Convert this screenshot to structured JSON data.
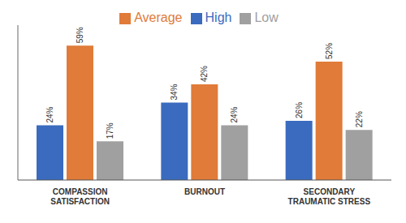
{
  "chart_data": {
    "type": "bar",
    "categories": [
      "COMPASSION\nSATISFACTION",
      "BURNOUT",
      "SECONDARY\nTRAUMATIC STRESS"
    ],
    "series": [
      {
        "name": "High",
        "color": "#3a6bbf",
        "values": [
          24,
          34,
          26
        ],
        "value_labels": [
          "24%",
          "34%",
          "26%"
        ]
      },
      {
        "name": "Average",
        "color": "#e07b39",
        "values": [
          59,
          42,
          52
        ],
        "value_labels": [
          "59%",
          "42%",
          "52%"
        ]
      },
      {
        "name": "Low",
        "color": "#a0a0a0",
        "values": [
          17,
          24,
          22
        ],
        "value_labels": [
          "17%",
          "24%",
          "22%"
        ]
      }
    ],
    "ylim": [
      0,
      68
    ],
    "data_labels": true,
    "grid": false,
    "legend": "top",
    "tick_labels": "x"
  }
}
